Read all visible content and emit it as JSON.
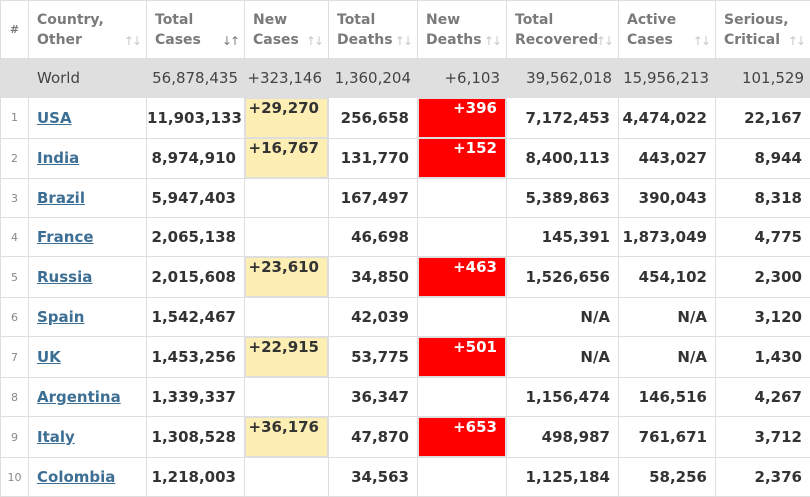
{
  "colors": {
    "new_cases_highlight": "#fdefb4",
    "new_deaths_highlight": "#ff0000",
    "link": "#3d6f94",
    "world_row": "#dfdfdf"
  },
  "headers": [
    {
      "key": "idx",
      "lines": [
        "#"
      ],
      "sort": ""
    },
    {
      "key": "country",
      "lines": [
        "Country,",
        "Other"
      ],
      "sort": "sort-icon"
    },
    {
      "key": "total_cases",
      "lines": [
        "Total",
        "Cases"
      ],
      "sort": "sort-desc-icon"
    },
    {
      "key": "new_cases",
      "lines": [
        "New",
        "Cases"
      ],
      "sort": "sort-icon"
    },
    {
      "key": "total_deaths",
      "lines": [
        "Total",
        "Deaths"
      ],
      "sort": "sort-icon"
    },
    {
      "key": "new_deaths",
      "lines": [
        "New",
        "Deaths"
      ],
      "sort": "sort-icon"
    },
    {
      "key": "total_recovered",
      "lines": [
        "Total",
        "Recovered"
      ],
      "sort": "sort-icon"
    },
    {
      "key": "active_cases",
      "lines": [
        "Active",
        "Cases"
      ],
      "sort": "sort-icon"
    },
    {
      "key": "serious_critical",
      "lines": [
        "Serious,",
        "Critical"
      ],
      "sort": "sort-icon"
    }
  ],
  "world": {
    "name": "World",
    "total_cases": "56,878,435",
    "new_cases": "+323,146",
    "total_deaths": "1,360,204",
    "new_deaths": "+6,103",
    "total_recovered": "39,562,018",
    "active_cases": "15,956,213",
    "serious_critical": "101,529"
  },
  "rows": [
    {
      "idx": "1",
      "name": "USA",
      "total_cases": "11,903,133",
      "new_cases": "+29,270",
      "total_deaths": "256,658",
      "new_deaths": "+396",
      "total_recovered": "7,172,453",
      "active_cases": "4,474,022",
      "serious_critical": "22,167"
    },
    {
      "idx": "2",
      "name": "India",
      "total_cases": "8,974,910",
      "new_cases": "+16,767",
      "total_deaths": "131,770",
      "new_deaths": "+152",
      "total_recovered": "8,400,113",
      "active_cases": "443,027",
      "serious_critical": "8,944"
    },
    {
      "idx": "3",
      "name": "Brazil",
      "total_cases": "5,947,403",
      "new_cases": "",
      "total_deaths": "167,497",
      "new_deaths": "",
      "total_recovered": "5,389,863",
      "active_cases": "390,043",
      "serious_critical": "8,318"
    },
    {
      "idx": "4",
      "name": "France",
      "total_cases": "2,065,138",
      "new_cases": "",
      "total_deaths": "46,698",
      "new_deaths": "",
      "total_recovered": "145,391",
      "active_cases": "1,873,049",
      "serious_critical": "4,775"
    },
    {
      "idx": "5",
      "name": "Russia",
      "total_cases": "2,015,608",
      "new_cases": "+23,610",
      "total_deaths": "34,850",
      "new_deaths": "+463",
      "total_recovered": "1,526,656",
      "active_cases": "454,102",
      "serious_critical": "2,300"
    },
    {
      "idx": "6",
      "name": "Spain",
      "total_cases": "1,542,467",
      "new_cases": "",
      "total_deaths": "42,039",
      "new_deaths": "",
      "total_recovered": "N/A",
      "active_cases": "N/A",
      "serious_critical": "3,120"
    },
    {
      "idx": "7",
      "name": "UK",
      "total_cases": "1,453,256",
      "new_cases": "+22,915",
      "total_deaths": "53,775",
      "new_deaths": "+501",
      "total_recovered": "N/A",
      "active_cases": "N/A",
      "serious_critical": "1,430"
    },
    {
      "idx": "8",
      "name": "Argentina",
      "total_cases": "1,339,337",
      "new_cases": "",
      "total_deaths": "36,347",
      "new_deaths": "",
      "total_recovered": "1,156,474",
      "active_cases": "146,516",
      "serious_critical": "4,267"
    },
    {
      "idx": "9",
      "name": "Italy",
      "total_cases": "1,308,528",
      "new_cases": "+36,176",
      "total_deaths": "47,870",
      "new_deaths": "+653",
      "total_recovered": "498,987",
      "active_cases": "761,671",
      "serious_critical": "3,712"
    },
    {
      "idx": "10",
      "name": "Colombia",
      "total_cases": "1,218,003",
      "new_cases": "",
      "total_deaths": "34,563",
      "new_deaths": "",
      "total_recovered": "1,125,184",
      "active_cases": "58,256",
      "serious_critical": "2,376"
    }
  ]
}
